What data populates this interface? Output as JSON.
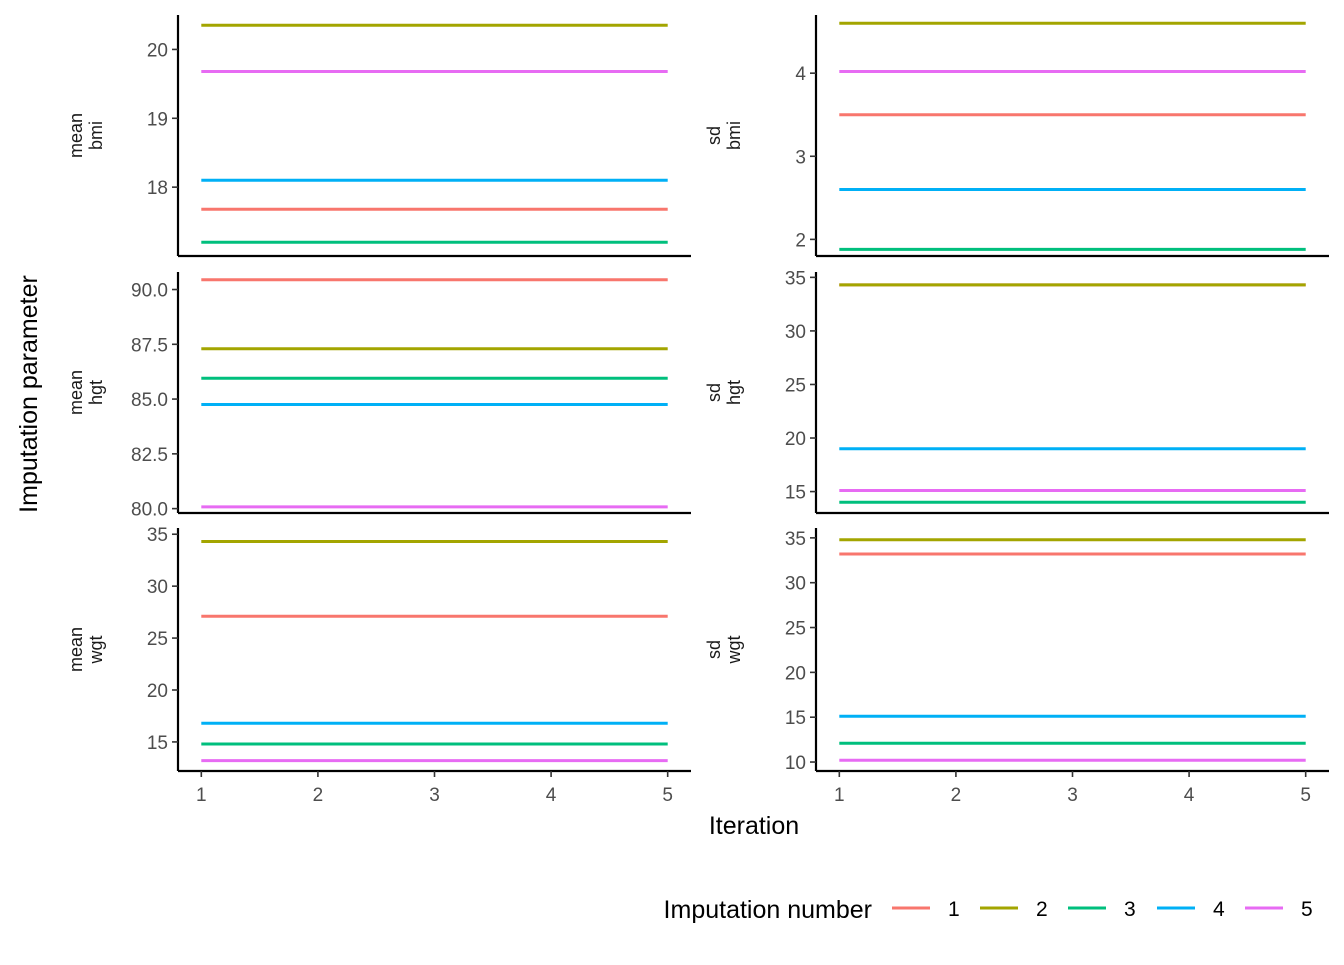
{
  "chart_data": {
    "type": "line",
    "x_label": "Iteration",
    "y_label": "Imputation parameter",
    "x_ticks": [
      1,
      2,
      3,
      4,
      5
    ],
    "x_range": [
      0.8,
      5.2
    ],
    "legend": {
      "title": "Imputation number",
      "position": "bottom-right",
      "entries": [
        {
          "label": "1",
          "color": "#F8766D"
        },
        {
          "label": "2",
          "color": "#A3A500"
        },
        {
          "label": "3",
          "color": "#00BF7D"
        },
        {
          "label": "4",
          "color": "#00B0F6"
        },
        {
          "label": "5",
          "color": "#E76BF3"
        }
      ]
    },
    "panels": [
      {
        "id": "mean-bmi",
        "stat": "mean",
        "variable": "bmi",
        "y_ticks": [
          18,
          19,
          20
        ],
        "y_tick_labels": [
          "18",
          "19",
          "20"
        ],
        "y_range": [
          17.0,
          20.5
        ],
        "series": [
          {
            "imputation": "1",
            "values": [
              17.68,
              17.68,
              17.68,
              17.68,
              17.68
            ]
          },
          {
            "imputation": "2",
            "values": [
              20.35,
              20.35,
              20.35,
              20.35,
              20.35
            ]
          },
          {
            "imputation": "3",
            "values": [
              17.2,
              17.2,
              17.2,
              17.2,
              17.2
            ]
          },
          {
            "imputation": "4",
            "values": [
              18.1,
              18.1,
              18.1,
              18.1,
              18.1
            ]
          },
          {
            "imputation": "5",
            "values": [
              19.68,
              19.68,
              19.68,
              19.68,
              19.68
            ]
          }
        ]
      },
      {
        "id": "sd-bmi",
        "stat": "sd",
        "variable": "bmi",
        "y_ticks": [
          2,
          3,
          4
        ],
        "y_tick_labels": [
          "2",
          "3",
          "4"
        ],
        "y_range": [
          1.8,
          4.7
        ],
        "series": [
          {
            "imputation": "1",
            "values": [
              3.5,
              3.5,
              3.5,
              3.5,
              3.5
            ]
          },
          {
            "imputation": "2",
            "values": [
              4.6,
              4.6,
              4.6,
              4.6,
              4.6
            ]
          },
          {
            "imputation": "3",
            "values": [
              1.88,
              1.88,
              1.88,
              1.88,
              1.88
            ]
          },
          {
            "imputation": "4",
            "values": [
              2.6,
              2.6,
              2.6,
              2.6,
              2.6
            ]
          },
          {
            "imputation": "5",
            "values": [
              4.02,
              4.02,
              4.02,
              4.02,
              4.02
            ]
          }
        ]
      },
      {
        "id": "mean-hgt",
        "stat": "mean",
        "variable": "hgt",
        "y_ticks": [
          80,
          82.5,
          85,
          87.5,
          90
        ],
        "y_tick_labels": [
          "80.0",
          "82.5",
          "85.0",
          "87.5",
          "90.0"
        ],
        "y_range": [
          79.8,
          90.8
        ],
        "series": [
          {
            "imputation": "1",
            "values": [
              90.45,
              90.45,
              90.45,
              90.45,
              90.45
            ]
          },
          {
            "imputation": "2",
            "values": [
              87.3,
              87.3,
              87.3,
              87.3,
              87.3
            ]
          },
          {
            "imputation": "3",
            "values": [
              85.95,
              85.95,
              85.95,
              85.95,
              85.95
            ]
          },
          {
            "imputation": "4",
            "values": [
              84.75,
              84.75,
              84.75,
              84.75,
              84.75
            ]
          },
          {
            "imputation": "5",
            "values": [
              80.08,
              80.08,
              80.08,
              80.08,
              80.08
            ]
          }
        ]
      },
      {
        "id": "sd-hgt",
        "stat": "sd",
        "variable": "hgt",
        "y_ticks": [
          15,
          20,
          25,
          30,
          35
        ],
        "y_tick_labels": [
          "15",
          "20",
          "25",
          "30",
          "35"
        ],
        "y_range": [
          13.0,
          35.5
        ],
        "series": [
          {
            "imputation": "1",
            "values": [
              34.3,
              34.3,
              34.3,
              34.3,
              34.3
            ]
          },
          {
            "imputation": "2",
            "values": [
              34.3,
              34.3,
              34.3,
              34.3,
              34.3
            ]
          },
          {
            "imputation": "3",
            "values": [
              14.0,
              14.0,
              14.0,
              14.0,
              14.0
            ]
          },
          {
            "imputation": "4",
            "values": [
              19.0,
              19.0,
              19.0,
              19.0,
              19.0
            ]
          },
          {
            "imputation": "5",
            "values": [
              15.1,
              15.1,
              15.1,
              15.1,
              15.1
            ]
          }
        ]
      },
      {
        "id": "mean-wgt",
        "stat": "mean",
        "variable": "wgt",
        "y_ticks": [
          15,
          20,
          25,
          30,
          35
        ],
        "y_tick_labels": [
          "15",
          "20",
          "25",
          "30",
          "35"
        ],
        "y_range": [
          12.2,
          35.6
        ],
        "series": [
          {
            "imputation": "1",
            "values": [
              27.1,
              27.1,
              27.1,
              27.1,
              27.1
            ]
          },
          {
            "imputation": "2",
            "values": [
              34.3,
              34.3,
              34.3,
              34.3,
              34.3
            ]
          },
          {
            "imputation": "3",
            "values": [
              14.8,
              14.8,
              14.8,
              14.8,
              14.8
            ]
          },
          {
            "imputation": "4",
            "values": [
              16.8,
              16.8,
              16.8,
              16.8,
              16.8
            ]
          },
          {
            "imputation": "5",
            "values": [
              13.2,
              13.2,
              13.2,
              13.2,
              13.2
            ]
          }
        ]
      },
      {
        "id": "sd-wgt",
        "stat": "sd",
        "variable": "wgt",
        "y_ticks": [
          10,
          15,
          20,
          25,
          30,
          35
        ],
        "y_tick_labels": [
          "10",
          "15",
          "20",
          "25",
          "30",
          "35"
        ],
        "y_range": [
          9.0,
          36.1
        ],
        "series": [
          {
            "imputation": "1",
            "values": [
              33.2,
              33.2,
              33.2,
              33.2,
              33.2
            ]
          },
          {
            "imputation": "2",
            "values": [
              34.8,
              34.8,
              34.8,
              34.8,
              34.8
            ]
          },
          {
            "imputation": "3",
            "values": [
              12.1,
              12.1,
              12.1,
              12.1,
              12.1
            ]
          },
          {
            "imputation": "4",
            "values": [
              15.1,
              15.1,
              15.1,
              15.1,
              15.1
            ]
          },
          {
            "imputation": "5",
            "values": [
              10.2,
              10.2,
              10.2,
              10.2,
              10.2
            ]
          }
        ]
      }
    ]
  }
}
